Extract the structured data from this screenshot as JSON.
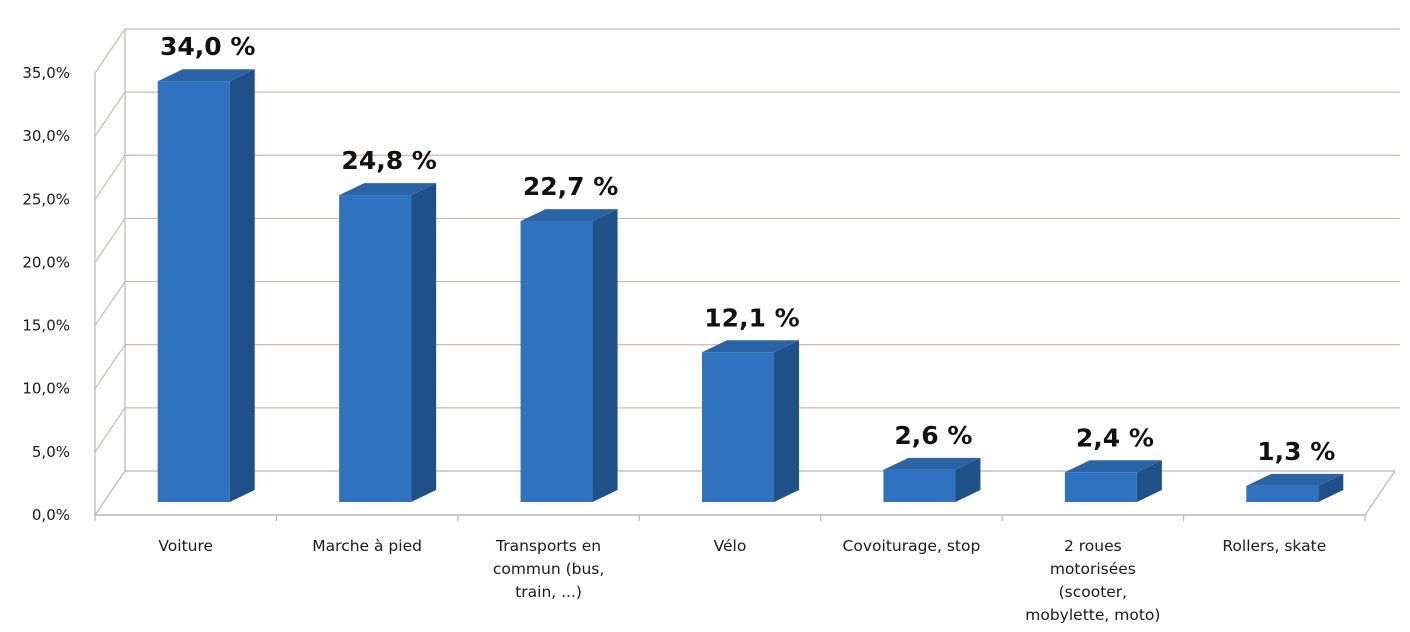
{
  "chart_data": {
    "type": "bar",
    "categories": [
      [
        "Voiture"
      ],
      [
        "Marche à pied"
      ],
      [
        "Transports en",
        "commun (bus,",
        "train, ...)"
      ],
      [
        "Vélo"
      ],
      [
        "Covoiturage, stop"
      ],
      [
        "2 roues",
        "motorisées",
        "(scooter,",
        "mobylette, moto)"
      ],
      [
        "Rollers, skate"
      ]
    ],
    "values": [
      34.0,
      24.8,
      22.7,
      12.1,
      2.6,
      2.4,
      1.3
    ],
    "data_labels": [
      "34,0 %",
      "24,8 %",
      "22,7 %",
      "12,1 %",
      "2,6 %",
      "2,4 %",
      "1,3 %"
    ],
    "y_ticks": [
      0,
      5,
      10,
      15,
      20,
      25,
      30,
      35
    ],
    "y_tick_labels": [
      "0,0%",
      "5,0%",
      "10,0%",
      "15,0%",
      "20,0%",
      "25,0%",
      "30,0%",
      "35,0%"
    ],
    "ylim": [
      0,
      35
    ],
    "grid": true,
    "legend": "none",
    "title": "",
    "xlabel": "",
    "ylabel": "",
    "colors": {
      "bar_front": "#2f72c0",
      "bar_side": "#1f5088",
      "bar_top": "#2b64a6",
      "gridline": "#d2b8aa",
      "axis": "#b8b8b8"
    }
  }
}
